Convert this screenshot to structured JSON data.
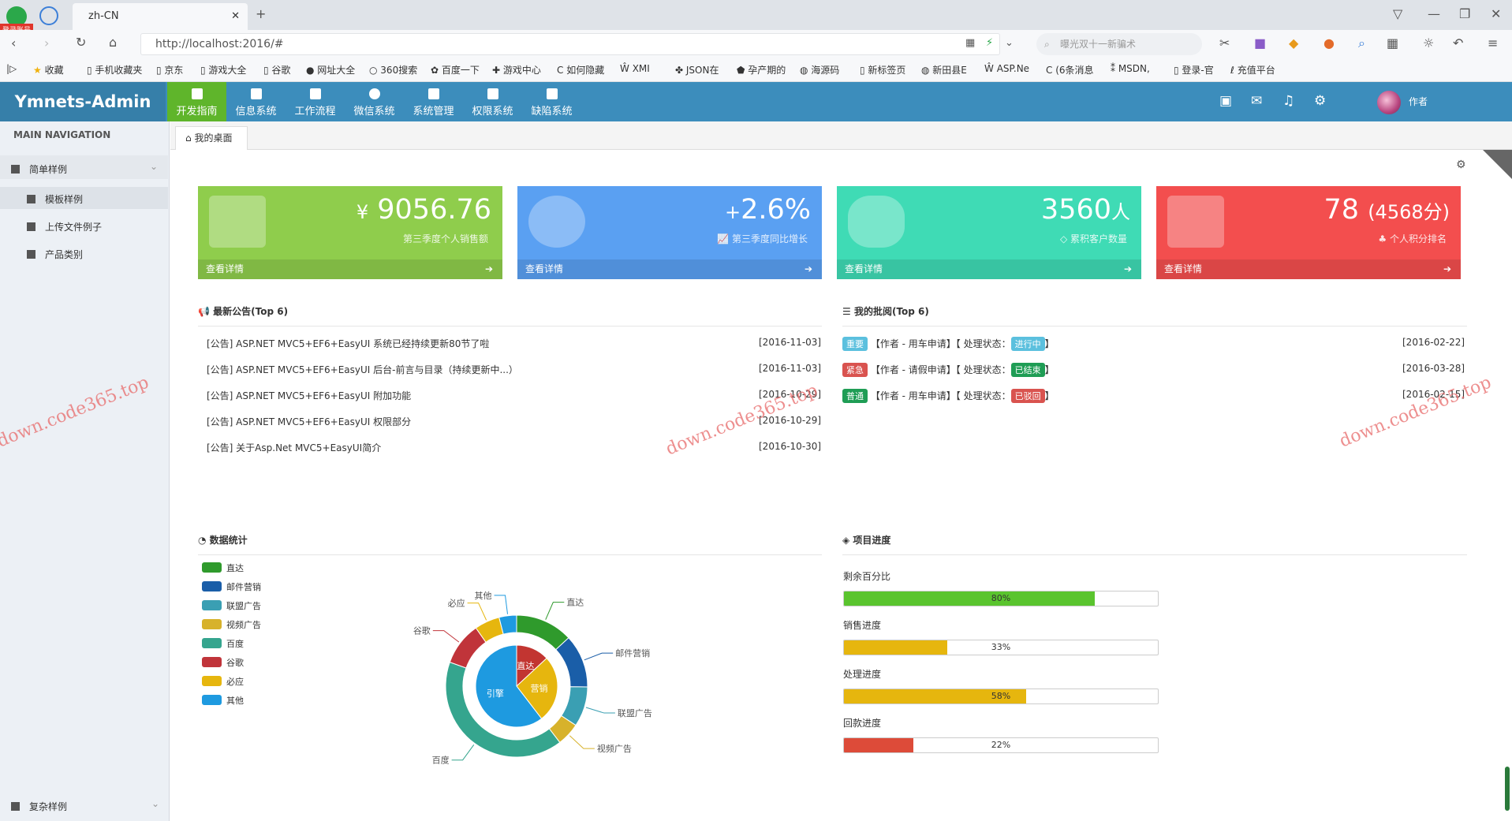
{
  "browser": {
    "tab_title": "zh-CN",
    "url": "http://localhost:2016/#",
    "search_placeholder": "曝光双十一新骗术",
    "corner_badge": "登录账号",
    "bookmarks": [
      "收藏",
      "手机收藏夹",
      "京东",
      "游戏大全",
      "谷歌",
      "网址大全",
      "360搜索",
      "百度一下",
      "游戏中心",
      "如何隐藏",
      "XMI",
      "JSON在",
      "孕产期的",
      "海源码",
      "新标签页",
      "新田县E",
      "ASP.Ne",
      "(6条消息",
      "MSDN,",
      "登录-官",
      "充值平台"
    ]
  },
  "app": {
    "brand": "Ymnets-Admin",
    "nav": [
      "开发指南",
      "信息系统",
      "工作流程",
      "微信系统",
      "系统管理",
      "权限系统",
      "缺陷系统"
    ],
    "user": "作者"
  },
  "sidebar": {
    "title": "MAIN NAVIGATION",
    "group": "简单样例",
    "items": [
      "模板样例",
      "上传文件例子",
      "产品类别"
    ],
    "footer": "复杂样例"
  },
  "tabs": {
    "home": "我的桌面"
  },
  "cards": [
    {
      "value": "9056.76",
      "prefix": "¥",
      "sub": "第三季度个人销售额",
      "more": "查看详情",
      "color": "#8fcd4c"
    },
    {
      "value": "2.6%",
      "prefix": "+",
      "sub": "第三季度同比增长",
      "more": "查看详情",
      "color": "#5aa0f2"
    },
    {
      "value": "3560",
      "suffix": "人",
      "sub": "累积客户数量",
      "more": "查看详情",
      "color": "#3fdbb5"
    },
    {
      "value": "78",
      "suffix": "(4568分)",
      "sub": "个人积分排名",
      "more": "查看详情",
      "color": "#f34e4e"
    }
  ],
  "announcements": {
    "title": "最新公告(Top 6)",
    "items": [
      {
        "text": "[公告] ASP.NET MVC5+EF6+EasyUI 系统已经持续更新80节了啦",
        "date": "[2016-11-03]"
      },
      {
        "text": "[公告] ASP.NET MVC5+EF6+EasyUI 后台-前言与目录（持续更新中...）",
        "date": "[2016-11-03]"
      },
      {
        "text": "[公告] ASP.NET MVC5+EF6+EasyUI 附加功能",
        "date": "[2016-10-29]"
      },
      {
        "text": "[公告] ASP.NET MVC5+EF6+EasyUI 权限部分",
        "date": "[2016-10-29]"
      },
      {
        "text": "[公告] 关于Asp.Net MVC5+EasyUI简介",
        "date": "[2016-10-30]"
      }
    ]
  },
  "approvals": {
    "title": "我的批阅(Top 6)",
    "items": [
      {
        "level": "重要",
        "level_color": "#5bc0de",
        "text": "【作者 - 用车申请】【 处理状态：",
        "status": "进行中",
        "status_color": "#5bc0de",
        "end": "】",
        "date": "[2016-02-22]"
      },
      {
        "level": "紧急",
        "level_color": "#d9534f",
        "text": "【作者 - 请假申请】【 处理状态：",
        "status": "已结束",
        "status_color": "#1f9d55",
        "end": "】",
        "date": "[2016-03-28]"
      },
      {
        "level": "普通",
        "level_color": "#1f9d55",
        "text": "【作者 - 用车申请】【 处理状态：",
        "status": "已驳回",
        "status_color": "#d9534f",
        "end": "】",
        "date": "[2016-02-15]"
      }
    ]
  },
  "stats": {
    "title": "数据统计"
  },
  "progress_section": {
    "title": "项目进度",
    "bars": [
      {
        "label": "剩余百分比",
        "value": 0.8,
        "text": "80%",
        "color": "#5ac42e"
      },
      {
        "label": "销售进度",
        "value": 0.33,
        "text": "33%",
        "color": "#e6b60e"
      },
      {
        "label": "处理进度",
        "value": 0.58,
        "text": "58%",
        "color": "#e6b60e"
      },
      {
        "label": "回款进度",
        "value": 0.22,
        "text": "22%",
        "color": "#dd4b39"
      }
    ]
  },
  "chart_data": {
    "type": "pie",
    "legend": [
      "直达",
      "邮件营销",
      "联盟广告",
      "视频广告",
      "百度",
      "谷歌",
      "必应",
      "其他"
    ],
    "inner": {
      "categories": [
        "直达",
        "营销",
        "引擎"
      ],
      "values": [
        335,
        679,
        1548
      ],
      "colors": [
        "#c23531",
        "#e6b60e",
        "#1e9ae0"
      ]
    },
    "outer": {
      "categories": [
        "直达",
        "邮件营销",
        "联盟广告",
        "视频广告",
        "百度",
        "谷歌",
        "必应",
        "其他"
      ],
      "values": [
        335,
        310,
        234,
        135,
        1048,
        251,
        147,
        102
      ],
      "colors": [
        "#2f9a2c",
        "#1a5ea8",
        "#3a9fb3",
        "#d7b22b",
        "#35a58e",
        "#c0343a",
        "#e6b60e",
        "#1e9ae0"
      ]
    },
    "legend_position": "top-left"
  },
  "watermark": "down.code365.top"
}
